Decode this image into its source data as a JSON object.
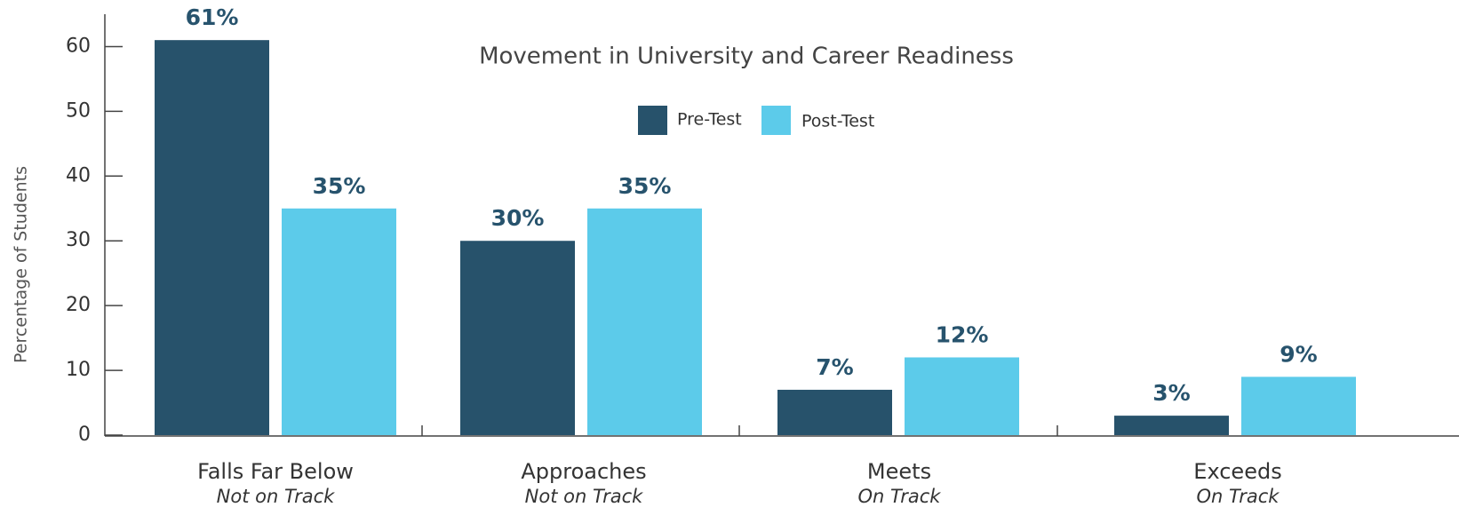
{
  "chart_data": {
    "type": "bar",
    "title": "Movement in University and Career Readiness",
    "y_label": "Percentage of Students",
    "categories": [
      "Falls Far Below",
      "Approaches",
      "Meets",
      "Exceeds"
    ],
    "category_subtitles": [
      "Not on Track",
      "Not on Track",
      "On Track",
      "On Track"
    ],
    "series": [
      {
        "name": "Pre-Test",
        "color": "#27526b",
        "values": [
          61,
          30,
          7,
          3
        ],
        "value_labels": [
          "61%",
          "30%",
          "7%",
          "3%"
        ]
      },
      {
        "name": "Post-Test",
        "color": "#5ccbea",
        "values": [
          35,
          35,
          12,
          9
        ],
        "value_labels": [
          "35%",
          "35%",
          "12%",
          "9%"
        ]
      }
    ],
    "ylim": [
      0,
      65
    ],
    "yticks": [
      0,
      10,
      20,
      30,
      40,
      50,
      60
    ],
    "legend": "top"
  }
}
